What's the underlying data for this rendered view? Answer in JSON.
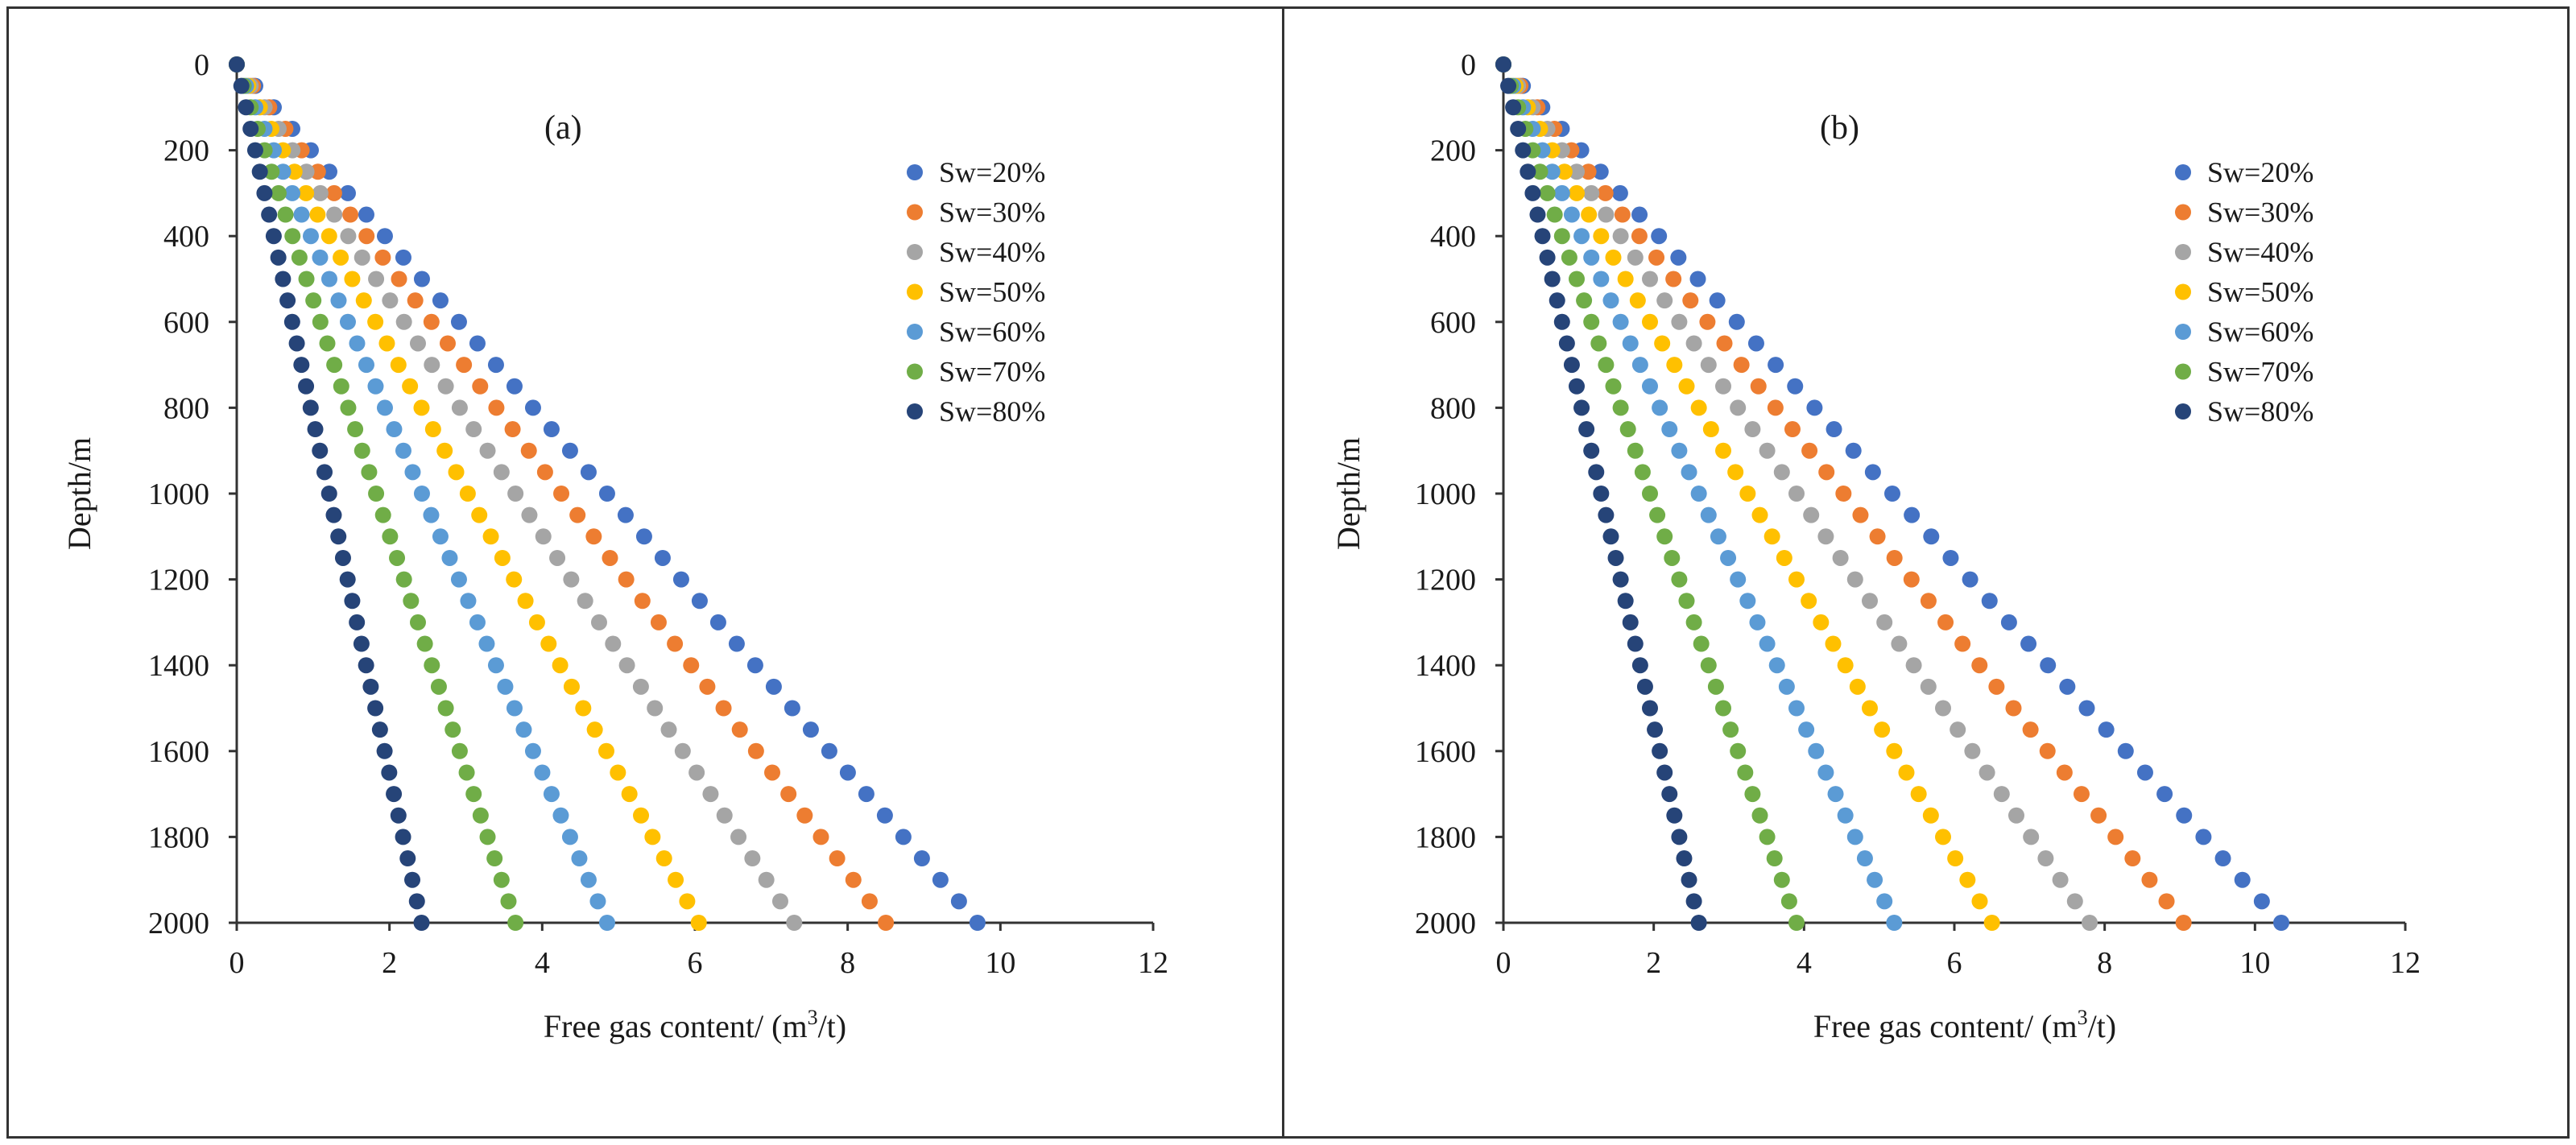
{
  "series_styles": [
    {
      "name": "Sw=20%",
      "color": "#4472C4"
    },
    {
      "name": "Sw=30%",
      "color": "#ED7D31"
    },
    {
      "name": "Sw=40%",
      "color": "#A5A5A5"
    },
    {
      "name": "Sw=50%",
      "color": "#FFC000"
    },
    {
      "name": "Sw=60%",
      "color": "#5B9BD5"
    },
    {
      "name": "Sw=70%",
      "color": "#70AD47"
    },
    {
      "name": "Sw=80%",
      "color": "#264478"
    }
  ],
  "chart_data": [
    {
      "type": "scatter",
      "panel_label": "(a)",
      "xlabel": "Free gas content/ (m",
      "xlabel_sup": "3",
      "xlabel_end": "/t)",
      "ylabel": "Depth/m",
      "xlim": [
        0,
        12
      ],
      "ylim": [
        0,
        2000
      ],
      "y_inverted": true,
      "x_ticks": [
        "0",
        "2",
        "4",
        "6",
        "8",
        "10",
        "12"
      ],
      "y_ticks": [
        "0",
        "200",
        "400",
        "600",
        "800",
        "1000",
        "1200",
        "1400",
        "1600",
        "1800",
        "2000"
      ],
      "depth_start": 0,
      "depth_step": 50,
      "depth_end": 2000,
      "legend_position": "top-right",
      "series": [
        {
          "name": "Sw=20%",
          "value_at_2000m": 9.7
        },
        {
          "name": "Sw=30%",
          "value_at_2000m": 8.5
        },
        {
          "name": "Sw=40%",
          "value_at_2000m": 7.3
        },
        {
          "name": "Sw=50%",
          "value_at_2000m": 6.05
        },
        {
          "name": "Sw=60%",
          "value_at_2000m": 4.85
        },
        {
          "name": "Sw=70%",
          "value_at_2000m": 3.65
        },
        {
          "name": "Sw=80%",
          "value_at_2000m": 2.42
        }
      ]
    },
    {
      "type": "scatter",
      "panel_label": "(b)",
      "xlabel": "Free gas content/ (m",
      "xlabel_sup": "3",
      "xlabel_end": "/t)",
      "ylabel": "Depth/m",
      "xlim": [
        0,
        12
      ],
      "ylim": [
        0,
        2000
      ],
      "y_inverted": true,
      "x_ticks": [
        "0",
        "2",
        "4",
        "6",
        "8",
        "10",
        "12"
      ],
      "y_ticks": [
        "0",
        "200",
        "400",
        "600",
        "800",
        "1000",
        "1200",
        "1400",
        "1600",
        "1800",
        "2000"
      ],
      "depth_start": 0,
      "depth_step": 50,
      "depth_end": 2000,
      "legend_position": "top-right",
      "series": [
        {
          "name": "Sw=20%",
          "value_at_2000m": 10.35
        },
        {
          "name": "Sw=30%",
          "value_at_2000m": 9.05
        },
        {
          "name": "Sw=40%",
          "value_at_2000m": 7.8
        },
        {
          "name": "Sw=50%",
          "value_at_2000m": 6.5
        },
        {
          "name": "Sw=60%",
          "value_at_2000m": 5.2
        },
        {
          "name": "Sw=70%",
          "value_at_2000m": 3.9
        },
        {
          "name": "Sw=80%",
          "value_at_2000m": 2.6
        }
      ]
    }
  ]
}
